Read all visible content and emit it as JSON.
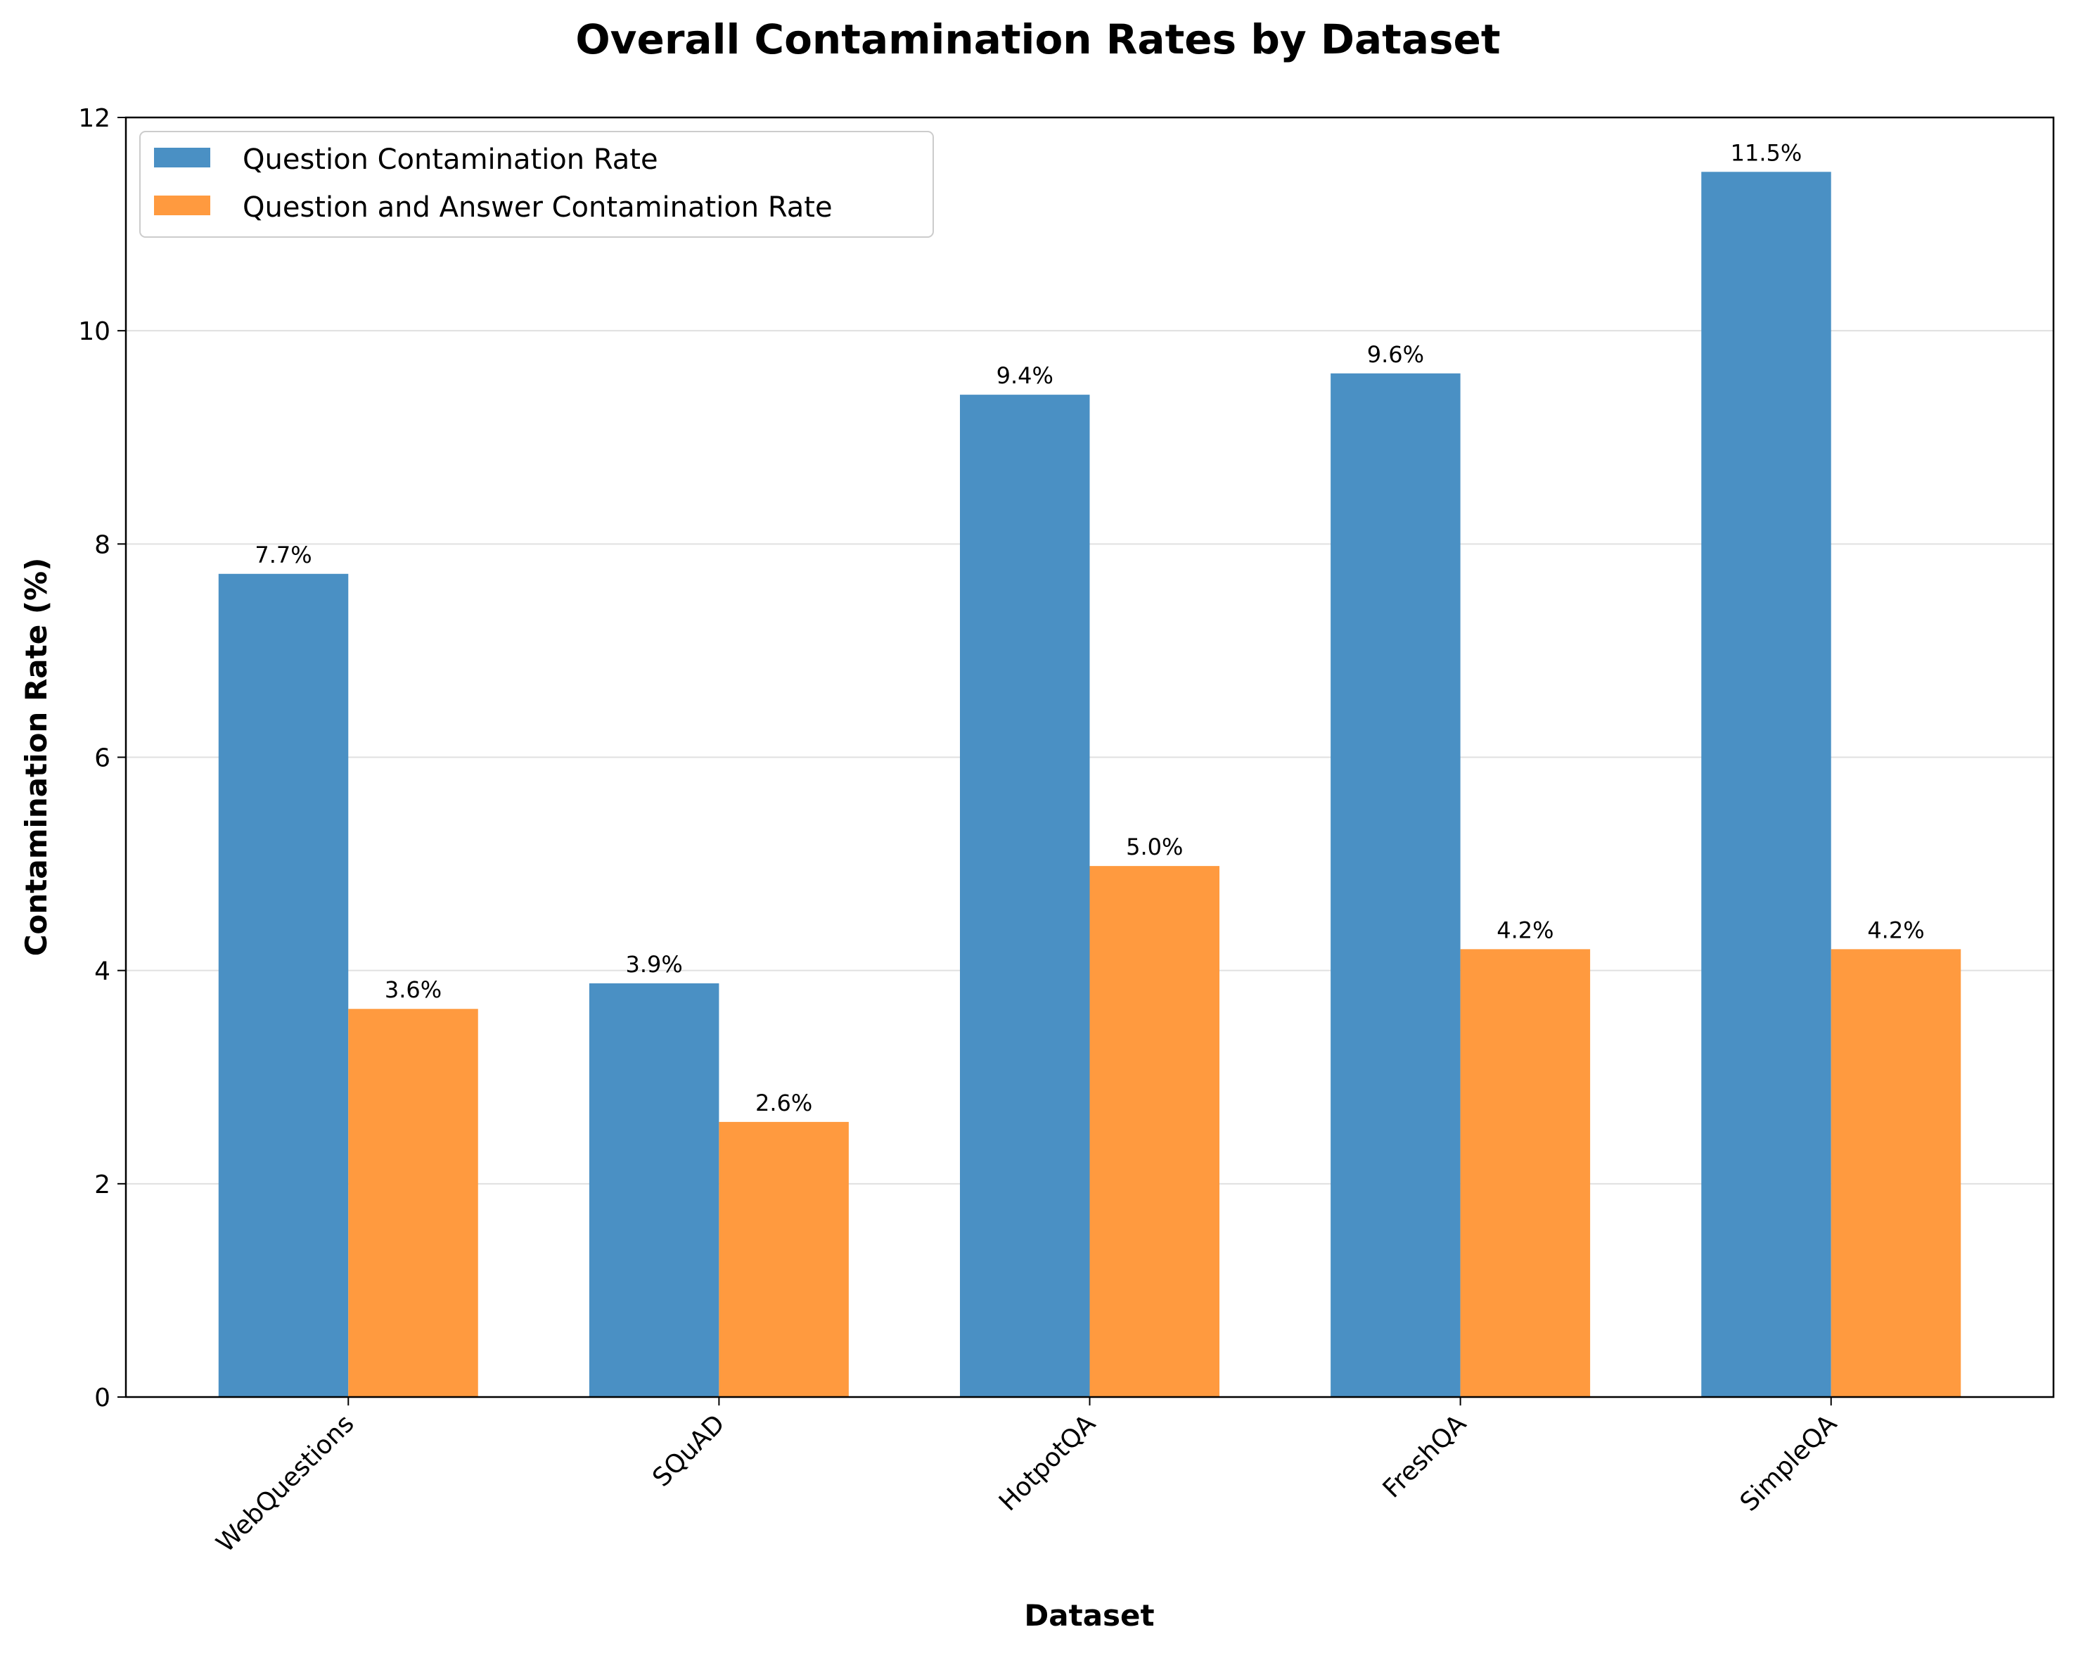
{
  "chart_data": {
    "type": "bar",
    "title": "Overall Contamination Rates by Dataset",
    "xlabel": "Dataset",
    "ylabel": "Contamination Rate (%)",
    "categories": [
      "WebQuestions",
      "SQuAD",
      "HotpotQA",
      "FreshQA",
      "SimpleQA"
    ],
    "series": [
      {
        "name": "Question Contamination Rate",
        "color": "#4a90c4",
        "values": [
          7.72,
          3.88,
          9.4,
          9.6,
          11.49
        ],
        "labels": [
          "7.7%",
          "3.9%",
          "9.4%",
          "9.6%",
          "11.5%"
        ]
      },
      {
        "name": "Question and Answer Contamination Rate",
        "color": "#ff9a3f",
        "values": [
          3.64,
          2.58,
          4.98,
          4.2,
          4.2
        ],
        "labels": [
          "3.6%",
          "2.6%",
          "5.0%",
          "4.2%",
          "4.2%"
        ]
      }
    ],
    "ylim": [
      0,
      12
    ],
    "yticks": [
      0,
      2,
      4,
      6,
      8,
      10,
      12
    ],
    "grid": "y",
    "legend": "top-left"
  }
}
